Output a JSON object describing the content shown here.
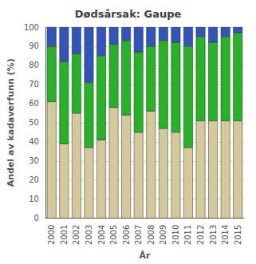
{
  "chart_data": {
    "type": "bar",
    "stacked": true,
    "title": "Dødsårsak: Gaupe",
    "xlabel": "År",
    "ylabel": "Andel av kadaverfunn (%)",
    "categories": [
      "2000",
      "2001",
      "2002",
      "2003",
      "2004",
      "2005",
      "2006",
      "2007",
      "2008",
      "2009",
      "2010",
      "2011",
      "2012",
      "2013",
      "2014",
      "2015"
    ],
    "series": [
      {
        "color": "#d4c99a",
        "values": [
          61,
          39,
          55,
          37,
          41,
          58,
          54,
          45,
          56,
          47,
          45,
          37,
          51,
          51,
          51,
          51
        ]
      },
      {
        "color": "#28b228",
        "values": [
          29,
          43,
          31,
          34,
          44,
          33,
          39,
          42,
          34,
          46,
          47,
          53,
          44,
          41,
          44,
          46
        ]
      },
      {
        "color": "#3355bb",
        "values": [
          10,
          18,
          14,
          29,
          15,
          9,
          7,
          13,
          10,
          7,
          8,
          10,
          5,
          8,
          5,
          3
        ]
      }
    ],
    "ylim": [
      0,
      100
    ],
    "yticks": [
      0,
      10,
      20,
      30,
      40,
      50,
      60,
      70,
      80,
      90,
      100
    ],
    "grid": true
  }
}
